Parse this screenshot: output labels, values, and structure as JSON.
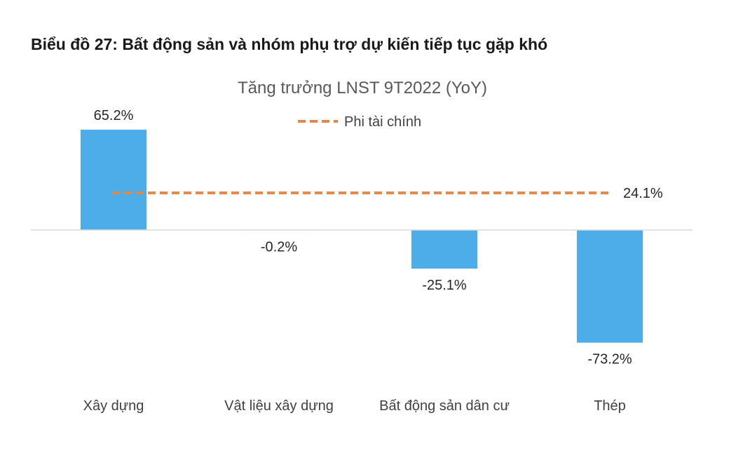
{
  "heading": "Biểu đồ 27: Bất động sản và nhóm phụ trợ dự kiến tiếp tục gặp khó",
  "chart_data": {
    "type": "bar",
    "title": "Tăng trưởng LNST 9T2022 (YoY)",
    "categories": [
      "Xây dựng",
      "Vật liệu xây dựng",
      "Bất động sản dân cư",
      "Thép"
    ],
    "series": [
      {
        "values": [
          65.2,
          -0.2,
          -25.1,
          -73.2
        ],
        "data_labels": [
          "65.2%",
          "-0.2%",
          "-25.1%",
          "-73.2%"
        ],
        "color": "#4dade8"
      }
    ],
    "reference_line": {
      "name": "Phi tài chính",
      "value": 24.1,
      "label": "24.1%",
      "style": "dashed",
      "color": "#e0894a"
    },
    "legend": {
      "position": "top-center"
    },
    "grid": false,
    "baseline_color": "#d9d9d9"
  }
}
